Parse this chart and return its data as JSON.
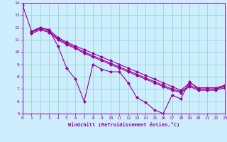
{
  "title": "",
  "xlabel": "Windchill (Refroidissement éolien,°C)",
  "ylabel": "",
  "background_color": "#cceeff",
  "line_color": "#990099",
  "grid_color": "#99ccbb",
  "xlim": [
    0,
    23
  ],
  "ylim": [
    5,
    14
  ],
  "yticks": [
    5,
    6,
    7,
    8,
    9,
    10,
    11,
    12,
    13,
    14
  ],
  "xticks": [
    0,
    1,
    2,
    3,
    4,
    5,
    6,
    7,
    8,
    9,
    10,
    11,
    12,
    13,
    14,
    15,
    16,
    17,
    18,
    19,
    20,
    21,
    22,
    23
  ],
  "lines": [
    {
      "x": [
        0,
        1,
        2,
        3,
        4,
        5,
        6,
        7,
        8,
        9,
        10,
        11,
        12,
        13,
        14,
        15,
        16,
        17,
        18,
        19,
        20,
        21,
        22,
        23
      ],
      "y": [
        13.8,
        11.7,
        12.0,
        11.8,
        10.5,
        8.7,
        7.8,
        6.0,
        9.0,
        8.6,
        8.4,
        8.4,
        7.5,
        6.3,
        5.9,
        5.3,
        5.0,
        6.5,
        6.2,
        7.6,
        7.0,
        7.0,
        7.0,
        7.3
      ]
    },
    {
      "x": [
        1,
        2,
        3,
        4,
        5,
        6,
        7,
        8,
        9,
        10,
        11,
        12,
        13,
        14,
        15,
        16,
        17,
        18,
        19,
        20,
        21,
        22,
        23
      ],
      "y": [
        11.6,
        12.0,
        11.8,
        11.2,
        10.8,
        10.5,
        10.2,
        9.9,
        9.6,
        9.3,
        9.0,
        8.7,
        8.4,
        8.1,
        7.8,
        7.5,
        7.2,
        6.9,
        7.5,
        7.1,
        7.1,
        7.1,
        7.3
      ]
    },
    {
      "x": [
        1,
        2,
        3,
        4,
        5,
        6,
        7,
        8,
        9,
        10,
        11,
        12,
        13,
        14,
        15,
        16,
        17,
        18,
        19,
        20,
        21,
        22,
        23
      ],
      "y": [
        11.6,
        11.9,
        11.7,
        11.1,
        10.7,
        10.4,
        10.0,
        9.7,
        9.4,
        9.1,
        8.8,
        8.5,
        8.2,
        7.9,
        7.6,
        7.3,
        7.0,
        6.8,
        7.3,
        7.0,
        7.0,
        7.0,
        7.2
      ]
    },
    {
      "x": [
        1,
        2,
        3,
        4,
        5,
        6,
        7,
        8,
        9,
        10,
        11,
        12,
        13,
        14,
        15,
        16,
        17,
        18,
        19,
        20,
        21,
        22,
        23
      ],
      "y": [
        11.5,
        11.8,
        11.6,
        11.0,
        10.6,
        10.3,
        9.9,
        9.6,
        9.3,
        9.0,
        8.7,
        8.4,
        8.1,
        7.8,
        7.5,
        7.2,
        6.9,
        6.7,
        7.2,
        6.9,
        6.9,
        6.9,
        7.1
      ]
    }
  ],
  "marker": "D",
  "markersize": 2.0,
  "linewidth": 0.8,
  "tick_fontsize": 4.5,
  "xlabel_fontsize": 5.0
}
